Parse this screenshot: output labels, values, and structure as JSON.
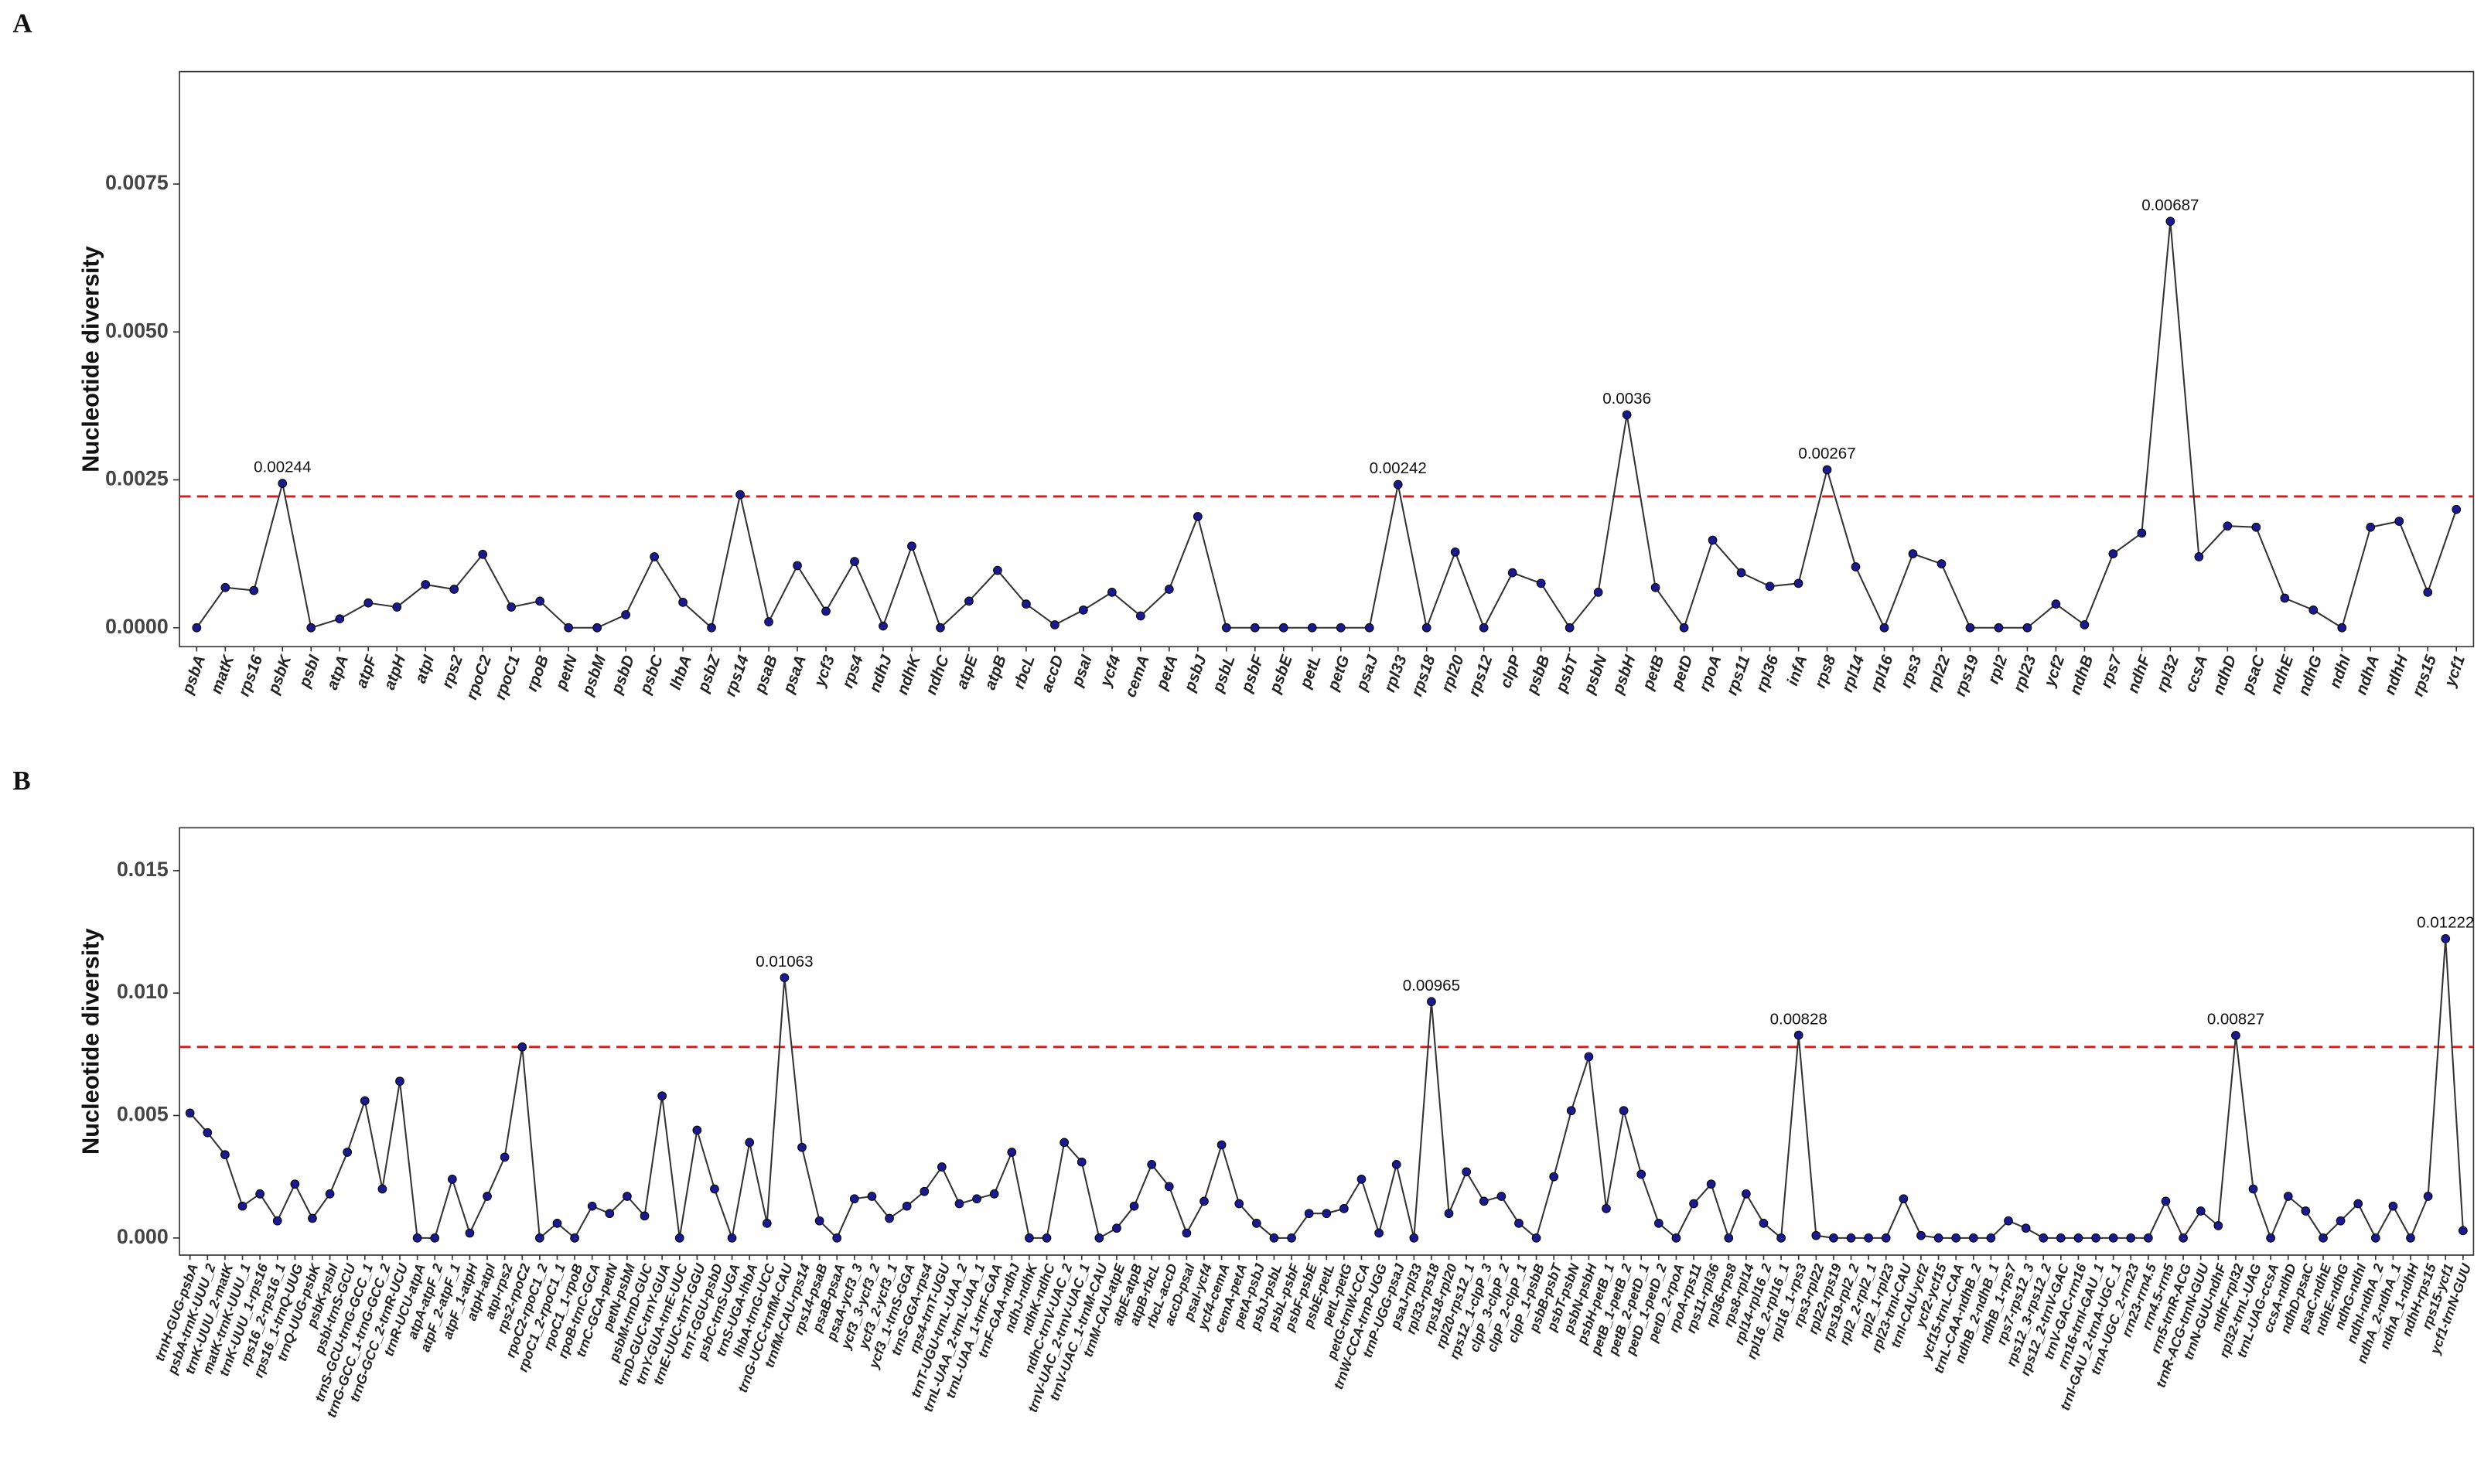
{
  "chart_data": [
    {
      "type": "line",
      "panel": "A",
      "ylabel": "Nucleotide diversity",
      "categories": [
        "psbA",
        "matK",
        "rps16",
        "psbK",
        "psbI",
        "atpA",
        "atpF",
        "atpH",
        "atpI",
        "rps2",
        "rpoC2",
        "rpoC1",
        "rpoB",
        "petN",
        "psbM",
        "psbD",
        "psbC",
        "lhbA",
        "psbZ",
        "rps14",
        "psaB",
        "psaA",
        "ycf3",
        "rps4",
        "ndhJ",
        "ndhK",
        "ndhC",
        "atpE",
        "atpB",
        "rbcL",
        "accD",
        "psaI",
        "ycf4",
        "cemA",
        "petA",
        "psbJ",
        "psbL",
        "psbF",
        "psbE",
        "petL",
        "petG",
        "psaJ",
        "rpl33",
        "rps18",
        "rpl20",
        "rps12",
        "clpP",
        "psbB",
        "psbT",
        "psbN",
        "psbH",
        "petB",
        "petD",
        "rpoA",
        "rps11",
        "rpl36",
        "infA",
        "rps8",
        "rpl14",
        "rpl16",
        "rps3",
        "rpl22",
        "rps19",
        "rpl2",
        "rpl23",
        "ycf2",
        "ndhB",
        "rps7",
        "ndhF",
        "rpl32",
        "ccsA",
        "ndhD",
        "psaC",
        "ndhE",
        "ndhG",
        "ndhI",
        "ndhA",
        "ndhH",
        "rps15",
        "ycf1"
      ],
      "values": [
        0,
        0.00068,
        0.00063,
        0.00244,
        0,
        0.00015,
        0.00042,
        0.00035,
        0.00073,
        0.00065,
        0.00124,
        0.00035,
        0.00045,
        0,
        0,
        0.00022,
        0.0012,
        0.00043,
        0,
        0.00225,
        0.0001,
        0.00105,
        0.00028,
        0.00112,
        3e-05,
        0.00138,
        0,
        0.00045,
        0.00097,
        0.0004,
        5e-05,
        0.0003,
        0.0006,
        0.0002,
        0.00065,
        0.00188,
        0,
        0,
        0,
        0,
        0,
        0,
        0.00242,
        0,
        0.00128,
        0,
        0.00093,
        0.00075,
        0,
        0.0006,
        0.0036,
        0.00068,
        0,
        0.00148,
        0.00093,
        0.0007,
        0.00075,
        0.00267,
        0.00103,
        0,
        0.00125,
        0.00108,
        0,
        0,
        0,
        0.0004,
        5e-05,
        0.00125,
        0.0016,
        0.00687,
        0.0012,
        0.00172,
        0.0017,
        0.0005,
        0.0003,
        0,
        0.0017,
        0.0018,
        0.0006,
        0.002
      ],
      "value_labels": [
        null,
        null,
        null,
        "0.00244",
        null,
        null,
        null,
        null,
        null,
        null,
        null,
        null,
        null,
        null,
        null,
        null,
        null,
        null,
        null,
        null,
        null,
        null,
        null,
        null,
        null,
        null,
        null,
        null,
        null,
        null,
        null,
        null,
        null,
        null,
        null,
        null,
        null,
        null,
        null,
        null,
        null,
        null,
        "0.00242",
        null,
        null,
        null,
        null,
        null,
        null,
        null,
        "0.0036",
        null,
        null,
        null,
        null,
        null,
        null,
        "0.00267",
        null,
        null,
        null,
        null,
        null,
        null,
        null,
        null,
        null,
        null,
        null,
        "0.00687",
        null,
        null,
        null,
        null,
        null,
        null,
        null,
        null,
        null,
        null
      ],
      "threshold": 0.00222,
      "color": "#1a1a8c",
      "line_color": "#333333",
      "threshold_color": "#cc1f1f",
      "ylim": [
        -0.00032,
        0.0094
      ],
      "yticks": [
        {
          "value": 0,
          "label": "0.0000"
        },
        0.0025,
        {
          "value": 0.005,
          "label": "0.0050"
        },
        0.0075
      ]
    },
    {
      "type": "line",
      "panel": "B",
      "ylabel": "Nucleotide diversity",
      "categories": [
        "trnH-GUG-psbA",
        "psbA-trnK-UUU_2",
        "trnK-UUU_2-matK",
        "matK-trnK-UUU_1",
        "trnK-UUU_1-rps16",
        "rps16_2-rps16_1",
        "rps16_1-trnQ-UUG",
        "trnQ-UUG-psbK",
        "psbK-psbI",
        "psbI-trnS-GCU",
        "trnS-GCU-trnG-GCC_1",
        "trnG-GCC_1-trnG-GCC_2",
        "trnG-GCC_2-trnR-UCU",
        "trnR-UCU-atpA",
        "atpA-atpF_2",
        "atpF_2-atpF_1",
        "atpF_1-atpH",
        "atpH-atpI",
        "atpI-rps2",
        "rps2-rpoC2",
        "rpoC2-rpoC1_2",
        "rpoC1_2-rpoC1_1",
        "rpoC1_1-rpoB",
        "rpoB-trnC-GCA",
        "trnC-GCA-petN",
        "petN-psbM",
        "psbM-trnD-GUC",
        "trnD-GUC-trnY-GUA",
        "trnY-GUA-trnE-UUC",
        "trnE-UUC-trnT-GGU",
        "trnT-GGU-psbD",
        "psbC-trnS-UGA",
        "trnS-UGA-lhbA",
        "lhbA-trnG-UCC",
        "trnG-UCC-trnfM-CAU",
        "trnfM-CAU-rps14",
        "rps14-psaB",
        "psaB-psaA",
        "psaA-ycf3_3",
        "ycf3_3-ycf3_2",
        "ycf3_2-ycf3_1",
        "ycf3_1-trnS-GGA",
        "trnS-GGA-rps4",
        "rps4-trnT-UGU",
        "trnT-UGU-trnL-UAA_2",
        "trnL-UAA_2-trnL-UAA_1",
        "trnL-UAA_1-trnF-GAA",
        "trnF-GAA-ndhJ",
        "ndhJ-ndhK",
        "ndhK-ndhC",
        "ndhC-trnV-UAC_2",
        "trnV-UAC_2-trnV-UAC_1",
        "trnV-UAC_1-trnM-CAU",
        "trnM-CAU-atpE",
        "atpE-atpB",
        "atpB-rbcL",
        "rbcL-accD",
        "accD-psaI",
        "psaI-ycf4",
        "ycf4-cemA",
        "cemA-petA",
        "petA-psbJ",
        "psbJ-psbL",
        "psbL-psbF",
        "psbF-psbE",
        "psbE-petL",
        "petL-petG",
        "petG-trnW-CCA",
        "trnW-CCA-trnP-UGG",
        "trnP-UGG-psaJ",
        "psaJ-rpl33",
        "rpl33-rps18",
        "rps18-rpl20",
        "rpl20-rps12_1",
        "rps12_1-clpP_3",
        "clpP_3-clpP_2",
        "clpP_2-clpP_1",
        "clpP_1-psbB",
        "psbB-psbT",
        "psbT-psbN",
        "psbN-psbH",
        "psbH-petB_1",
        "petB_1-petB_2",
        "petB_2-petD_1",
        "petD_1-petD_2",
        "petD_2-rpoA",
        "rpoA-rps11",
        "rps11-rpl36",
        "rpl36-rps8",
        "rps8-rpl14",
        "rpl14-rpl16_2",
        "rpl16_2-rpl16_1",
        "rpl16_1-rps3",
        "rps3-rpl22",
        "rpl22-rps19",
        "rps19-rpl2_2",
        "rpl2_2-rpl2_1",
        "rpl2_1-rpl23",
        "rpl23-trnI-CAU",
        "trnI-CAU-ycf2",
        "ycf2-ycf15",
        "ycf15-trnL-CAA",
        "trnL-CAA-ndhB_2",
        "ndhB_2-ndhB_1",
        "ndhB_1-rps7",
        "rps7-rps12_3",
        "rps12_3-rps12_2",
        "rps12_2-trnV-GAC",
        "trnV-GAC-rrn16",
        "rrn16-trnI-GAU_1",
        "trnI-GAU_2-trnA-UGC_1",
        "trnA-UGC_2-rrn23",
        "rrn23-rrn4.5",
        "rrn4.5-rrn5",
        "rrn5-trnR-ACG",
        "trnR-ACG-trnN-GUU",
        "trnN-GUU-ndhF",
        "ndhF-rpl32",
        "rpl32-trnL-UAG",
        "trnL-UAG-ccsA",
        "ccsA-ndhD",
        "ndhD-psaC",
        "psaC-ndhE",
        "ndhE-ndhG",
        "ndhG-ndhI",
        "ndhI-ndhA_2",
        "ndhA_2-ndhA_1",
        "ndhA_1-ndhH",
        "ndhH-rps15",
        "rps15-ycf1",
        "ycf1-trnN-GUU"
      ],
      "values": [
        0.0051,
        0.0043,
        0.0034,
        0.0013,
        0.0018,
        0.0007,
        0.0022,
        0.0008,
        0.0018,
        0.0035,
        0.0056,
        0.002,
        0.0064,
        0,
        0,
        0.0024,
        0.0002,
        0.0017,
        0.0033,
        0.0078,
        0,
        0.0006,
        0,
        0.0013,
        0.001,
        0.0017,
        0.0009,
        0.0058,
        0,
        0.0044,
        0.002,
        0,
        0.0039,
        0.0006,
        0.01063,
        0.0037,
        0.0007,
        0,
        0.0016,
        0.0017,
        0.0008,
        0.0013,
        0.0019,
        0.0029,
        0.0014,
        0.0016,
        0.0018,
        0.0035,
        0,
        0,
        0.0039,
        0.0031,
        0,
        0.0004,
        0.0013,
        0.003,
        0.0021,
        0.0002,
        0.0015,
        0.0038,
        0.0014,
        0.0006,
        0,
        0,
        0.001,
        0.001,
        0.0012,
        0.0024,
        0.0002,
        0.003,
        0,
        0.00965,
        0.001,
        0.0027,
        0.0015,
        0.0017,
        0.0006,
        0,
        0.0025,
        0.0052,
        0.0074,
        0.0012,
        0.0052,
        0.0026,
        0.0006,
        0,
        0.0014,
        0.0022,
        0,
        0.0018,
        0.0006,
        0,
        0.00828,
        0.0001,
        0,
        0,
        0,
        0,
        0.0016,
        0.0001,
        0,
        0,
        0,
        0,
        0.0007,
        0.0004,
        0,
        0,
        0,
        0,
        0,
        0,
        0,
        0.0015,
        0,
        0.0011,
        0.0005,
        0.00827,
        0.002,
        0,
        0.0017,
        0.0011,
        0,
        0.0007,
        0.0014,
        0,
        0.0013,
        0,
        0.0017,
        0.01222,
        0.0003
      ],
      "value_labels": [
        null,
        null,
        null,
        null,
        null,
        null,
        null,
        null,
        null,
        null,
        null,
        null,
        null,
        null,
        null,
        null,
        null,
        null,
        null,
        null,
        null,
        null,
        null,
        null,
        null,
        null,
        null,
        null,
        null,
        null,
        null,
        null,
        null,
        null,
        "0.01063",
        null,
        null,
        null,
        null,
        null,
        null,
        null,
        null,
        null,
        null,
        null,
        null,
        null,
        null,
        null,
        null,
        null,
        null,
        null,
        null,
        null,
        null,
        null,
        null,
        null,
        null,
        null,
        null,
        null,
        null,
        null,
        null,
        null,
        null,
        null,
        null,
        "0.00965",
        null,
        null,
        null,
        null,
        null,
        null,
        null,
        null,
        null,
        null,
        null,
        null,
        null,
        null,
        null,
        null,
        null,
        null,
        null,
        null,
        "0.00828",
        null,
        null,
        null,
        null,
        null,
        null,
        null,
        null,
        null,
        null,
        null,
        null,
        null,
        null,
        null,
        null,
        null,
        null,
        null,
        null,
        null,
        null,
        null,
        null,
        "0.00827",
        null,
        null,
        null,
        null,
        null,
        null,
        null,
        null,
        null,
        null,
        null,
        "0.01222",
        null
      ],
      "threshold": 0.0078,
      "color": "#1a1a8c",
      "line_color": "#333333",
      "threshold_color": "#cc1f1f",
      "ylim": [
        -0.0007,
        0.01675
      ],
      "yticks": [
        {
          "value": 0,
          "label": "0.000"
        },
        0.005,
        {
          "value": 0.01,
          "label": "0.010"
        },
        0.015
      ]
    }
  ]
}
